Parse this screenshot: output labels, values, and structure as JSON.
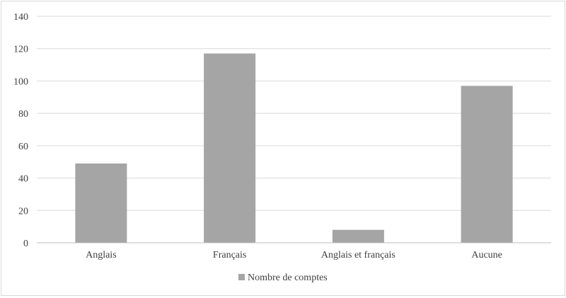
{
  "chart_data": {
    "type": "bar",
    "title": "",
    "xlabel": "",
    "ylabel": "",
    "categories": [
      "Anglais",
      "Français",
      "Anglais et français",
      "Aucune"
    ],
    "series": [
      {
        "name": "Nombre de comptes",
        "values": [
          49,
          117,
          8,
          97
        ],
        "color": "#a5a5a5"
      }
    ],
    "ylim": [
      0,
      140
    ],
    "yticks": [
      0,
      20,
      40,
      60,
      80,
      100,
      120,
      140
    ],
    "grid": true,
    "gridColor": "#d9d9d9",
    "axisColor": "#bfbfbf",
    "legend": "bottom"
  }
}
